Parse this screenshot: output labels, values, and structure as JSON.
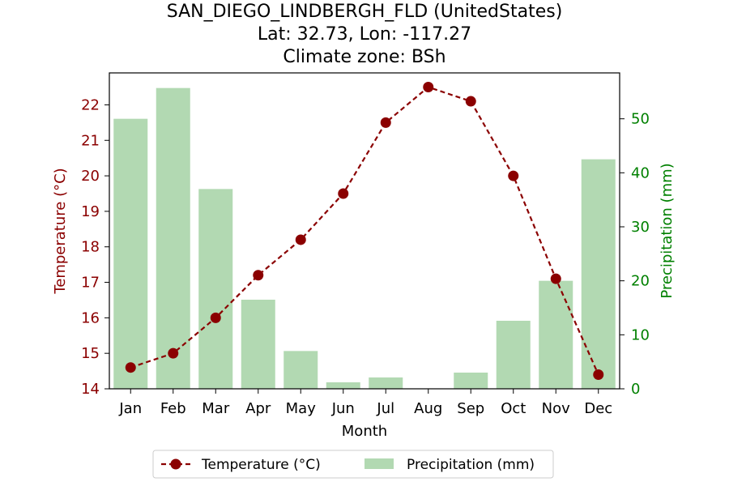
{
  "chart_data": {
    "type": "bar+line",
    "title_lines": [
      "SAN_DIEGO_LINDBERGH_FLD (UnitedStates)",
      "Lat: 32.73, Lon: -117.27",
      "Climate zone: BSh"
    ],
    "xlabel": "Month",
    "ylabel_left": "Temperature (°C)",
    "ylabel_right": "Precipitation (mm)",
    "categories": [
      "Jan",
      "Feb",
      "Mar",
      "Apr",
      "May",
      "Jun",
      "Jul",
      "Aug",
      "Sep",
      "Oct",
      "Nov",
      "Dec"
    ],
    "temperature": {
      "name": "Temperature (°C)",
      "values": [
        14.6,
        15.0,
        16.0,
        17.2,
        18.2,
        19.5,
        21.5,
        22.5,
        22.1,
        20.0,
        17.1,
        14.4
      ],
      "color": "#8b0000",
      "style": "dashed-line-with-circles"
    },
    "precipitation": {
      "name": "Precipitation (mm)",
      "values": [
        50.0,
        55.7,
        37.0,
        16.5,
        7.0,
        1.2,
        2.1,
        0.0,
        3.0,
        12.6,
        20.0,
        42.5
      ],
      "color": "#b2d9b2"
    },
    "ylim_left": [
      14.0,
      22.9
    ],
    "yticks_left": [
      14,
      15,
      16,
      17,
      18,
      19,
      20,
      21,
      22
    ],
    "ylim_right": [
      0,
      58.5
    ],
    "yticks_right": [
      0,
      10,
      20,
      30,
      40,
      50
    ],
    "left_axis_color": "#8b0000",
    "right_axis_color": "#008000",
    "legend": {
      "placement": "bottom-center",
      "items": [
        "Temperature (°C)",
        "Precipitation (mm)"
      ]
    },
    "grid": false
  }
}
